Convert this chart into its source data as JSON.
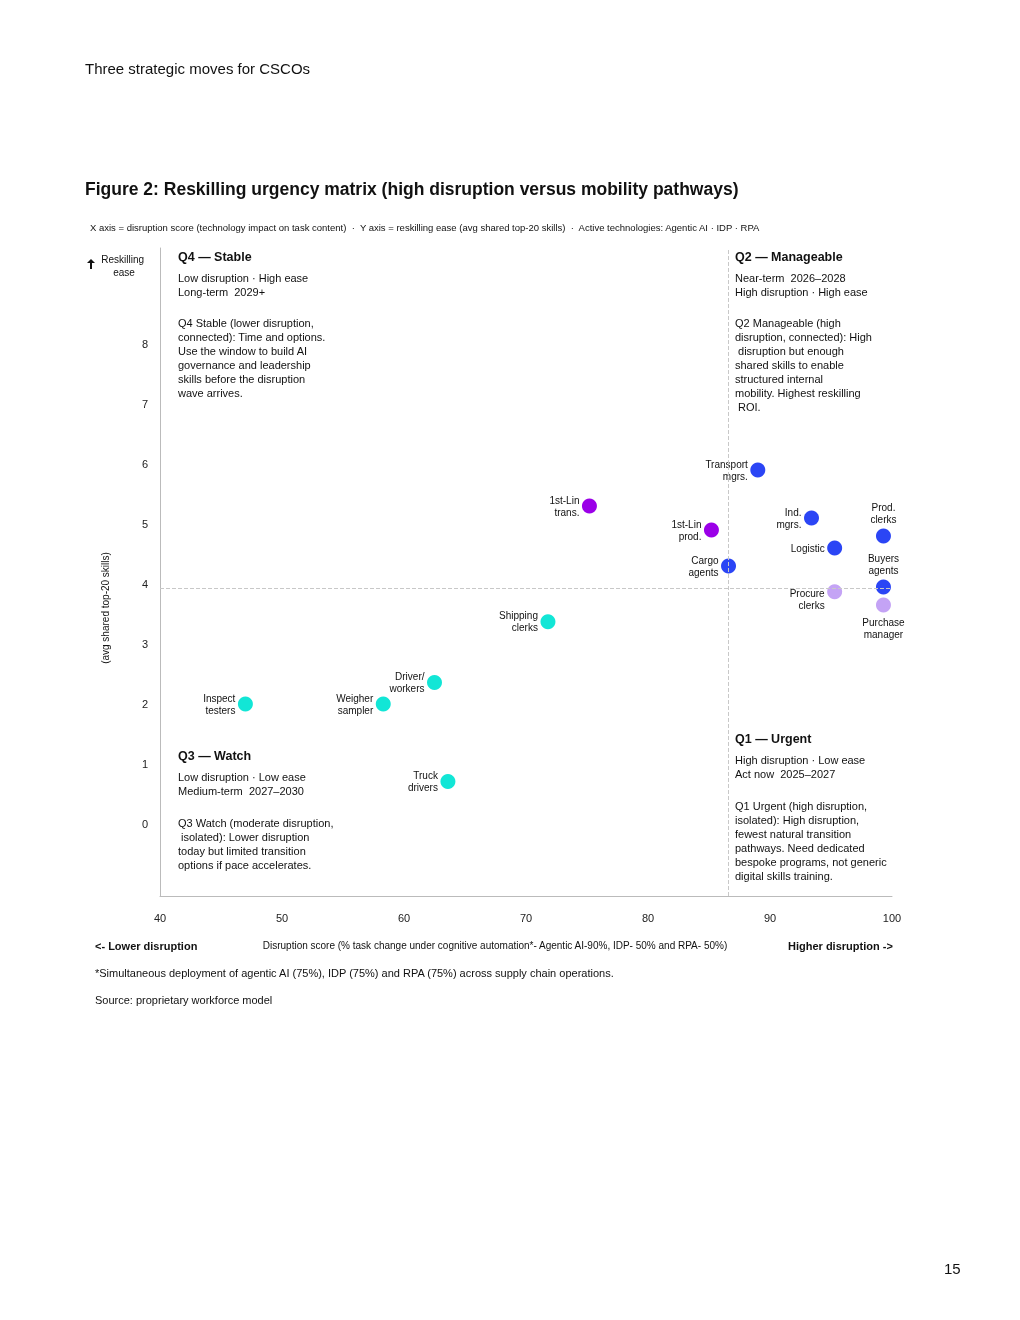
{
  "chart_data": {
    "type": "scatter",
    "title": "Figure 2: Reskilling urgency matrix (high disruption versus mobility pathways)",
    "subtitle": "X axis = disruption score (technology impact on task content)  ·  Y axis = reskilling ease (avg shared top-20 skills)  ·  Active technologies: Agentic AI · IDP · RPA",
    "xlabel": "Disruption score (% task change under cognitive automation*- Agentic AI-90%, IDP- 50% and RPA- 50%)",
    "ylabel": "Reskilling ease",
    "xlim": [
      40,
      100
    ],
    "xticks": [
      40,
      50,
      60,
      70,
      80,
      90,
      100
    ],
    "ylim": [
      -1.2,
      9.6
    ],
    "yticks": [
      0,
      1,
      2,
      3,
      4,
      5,
      6,
      7,
      8
    ],
    "marker": "circle",
    "series": [
      {
        "color": "#2b45f5",
        "x": [
          89.0,
          93.4,
          99.3,
          95.3,
          86.6,
          99.3
        ],
        "values": [
          5.9,
          5.1,
          4.8,
          4.6,
          4.3,
          3.95
        ]
      },
      {
        "color": "#9b00e8",
        "x": [
          75.2,
          85.2
        ],
        "values": [
          5.3,
          4.9
        ]
      },
      {
        "color": "#c4a3f5",
        "x": [
          95.3,
          99.3
        ],
        "values": [
          3.87,
          3.65
        ]
      },
      {
        "color": "#12e6d6",
        "x": [
          71.8,
          62.5,
          47.0,
          58.3,
          63.6
        ],
        "values": [
          3.37,
          2.36,
          2.0,
          2.0,
          0.71
        ]
      }
    ],
    "ref_lines": [
      {
        "axis": "x",
        "value": 86.6,
        "color": "#c8c8c8",
        "line_style": "dashed"
      },
      {
        "axis": "y",
        "value": 3.93,
        "color": "#c8c8c8",
        "line_style": "dashed"
      }
    ],
    "annotations": [
      "Three strategic moves for CSCOs",
      "Q4 — Stable",
      "Low disruption · High ease",
      "Long-term  2029+",
      "Q4 Stable (lower disruption, connected): Time and options. Use the window to build AI governance and leadership skills before the disruption wave arrives.",
      "Q2 — Manageable",
      "Near-term  2026–2028",
      "High disruption · High ease",
      "Q2 Manageable (high disruption, connected): High disruption but enough shared skills to enable structured internal mobility. Highest reskilling ROI.",
      "Q3 — Watch",
      "Low disruption · Low ease",
      "Medium-term  2027–2030",
      "Q3 Watch (moderate disruption, isolated): Lower disruption today but limited transition options if pace accelerates.",
      "Q1 — Urgent",
      "High disruption · Low ease",
      "Act now  2025–2027",
      "Q1 Urgent (high disruption, isolated): High disruption, fewest natural transition pathways. Need dedicated bespoke programs, not generic digital skills training.",
      "<- Lower disruption",
      "Higher disruption ->",
      "*Simultaneous deployment of agentic AI (75%), IDP (75%) and RPA (75%) across supply chain operations.",
      "Source: proprietary workforce model",
      "(avg shared top-20 skills)",
      "15",
      {
        "text": "Transport mgrs.",
        "x": 89.0,
        "y": 5.9
      },
      {
        "text": "Ind. mgrs.",
        "x": 93.4,
        "y": 5.1
      },
      {
        "text": "Prod. clerks",
        "x": 99.3,
        "y": 4.8
      },
      {
        "text": "Logistic",
        "x": 95.3,
        "y": 4.6
      },
      {
        "text": "Cargo agents",
        "x": 86.6,
        "y": 4.3
      },
      {
        "text": "Buyers agents",
        "x": 99.3,
        "y": 3.95
      },
      {
        "text": "1st-Lin trans.",
        "x": 75.2,
        "y": 5.3
      },
      {
        "text": "1st-Lin prod.",
        "x": 85.2,
        "y": 4.9
      },
      {
        "text": "Procure clerks",
        "x": 95.3,
        "y": 3.87
      },
      {
        "text": "Purchase manager",
        "x": 99.3,
        "y": 3.65
      },
      {
        "text": "Shipping clerks",
        "x": 71.8,
        "y": 3.37
      },
      {
        "text": "Driver/workers",
        "x": 62.5,
        "y": 2.36
      },
      {
        "text": "Inspect testers",
        "x": 47.0,
        "y": 2.0
      },
      {
        "text": "Weigher sampler",
        "x": 58.3,
        "y": 2.0
      },
      {
        "text": "Truck drivers",
        "x": 63.6,
        "y": 0.71
      }
    ]
  }
}
